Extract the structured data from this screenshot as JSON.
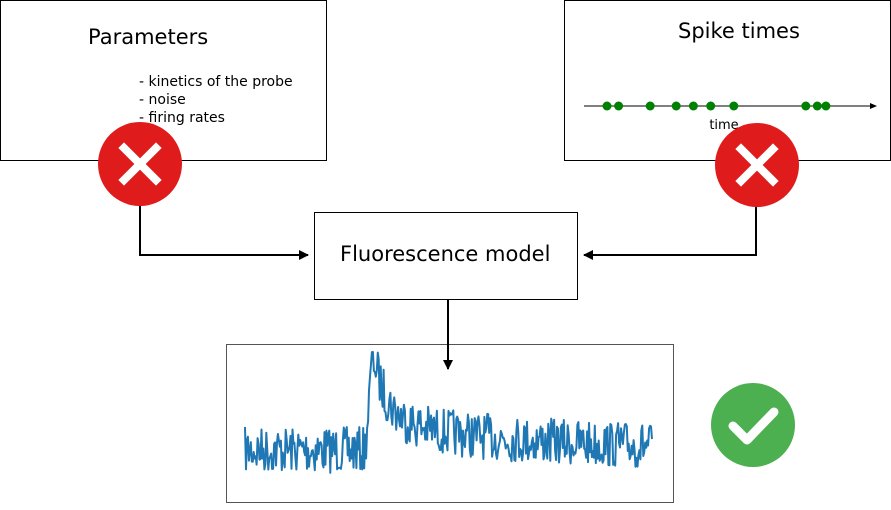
{
  "parameters": {
    "title": "Parameters",
    "items": [
      "kinetics of the probe",
      "noise",
      "firing rates"
    ]
  },
  "spikes": {
    "title": "Spike times",
    "axis_label": "time",
    "spike_positions": [
      0.08,
      0.12,
      0.23,
      0.32,
      0.38,
      0.44,
      0.52,
      0.77,
      0.81,
      0.84
    ]
  },
  "model": {
    "title": "Fluorescence model"
  },
  "status": {
    "parameters": "cross",
    "spikes": "cross",
    "trace": "check",
    "cross_color": "#e01b1b",
    "check_color": "#4caf50"
  },
  "trace": {
    "color": "#1f77b4"
  }
}
